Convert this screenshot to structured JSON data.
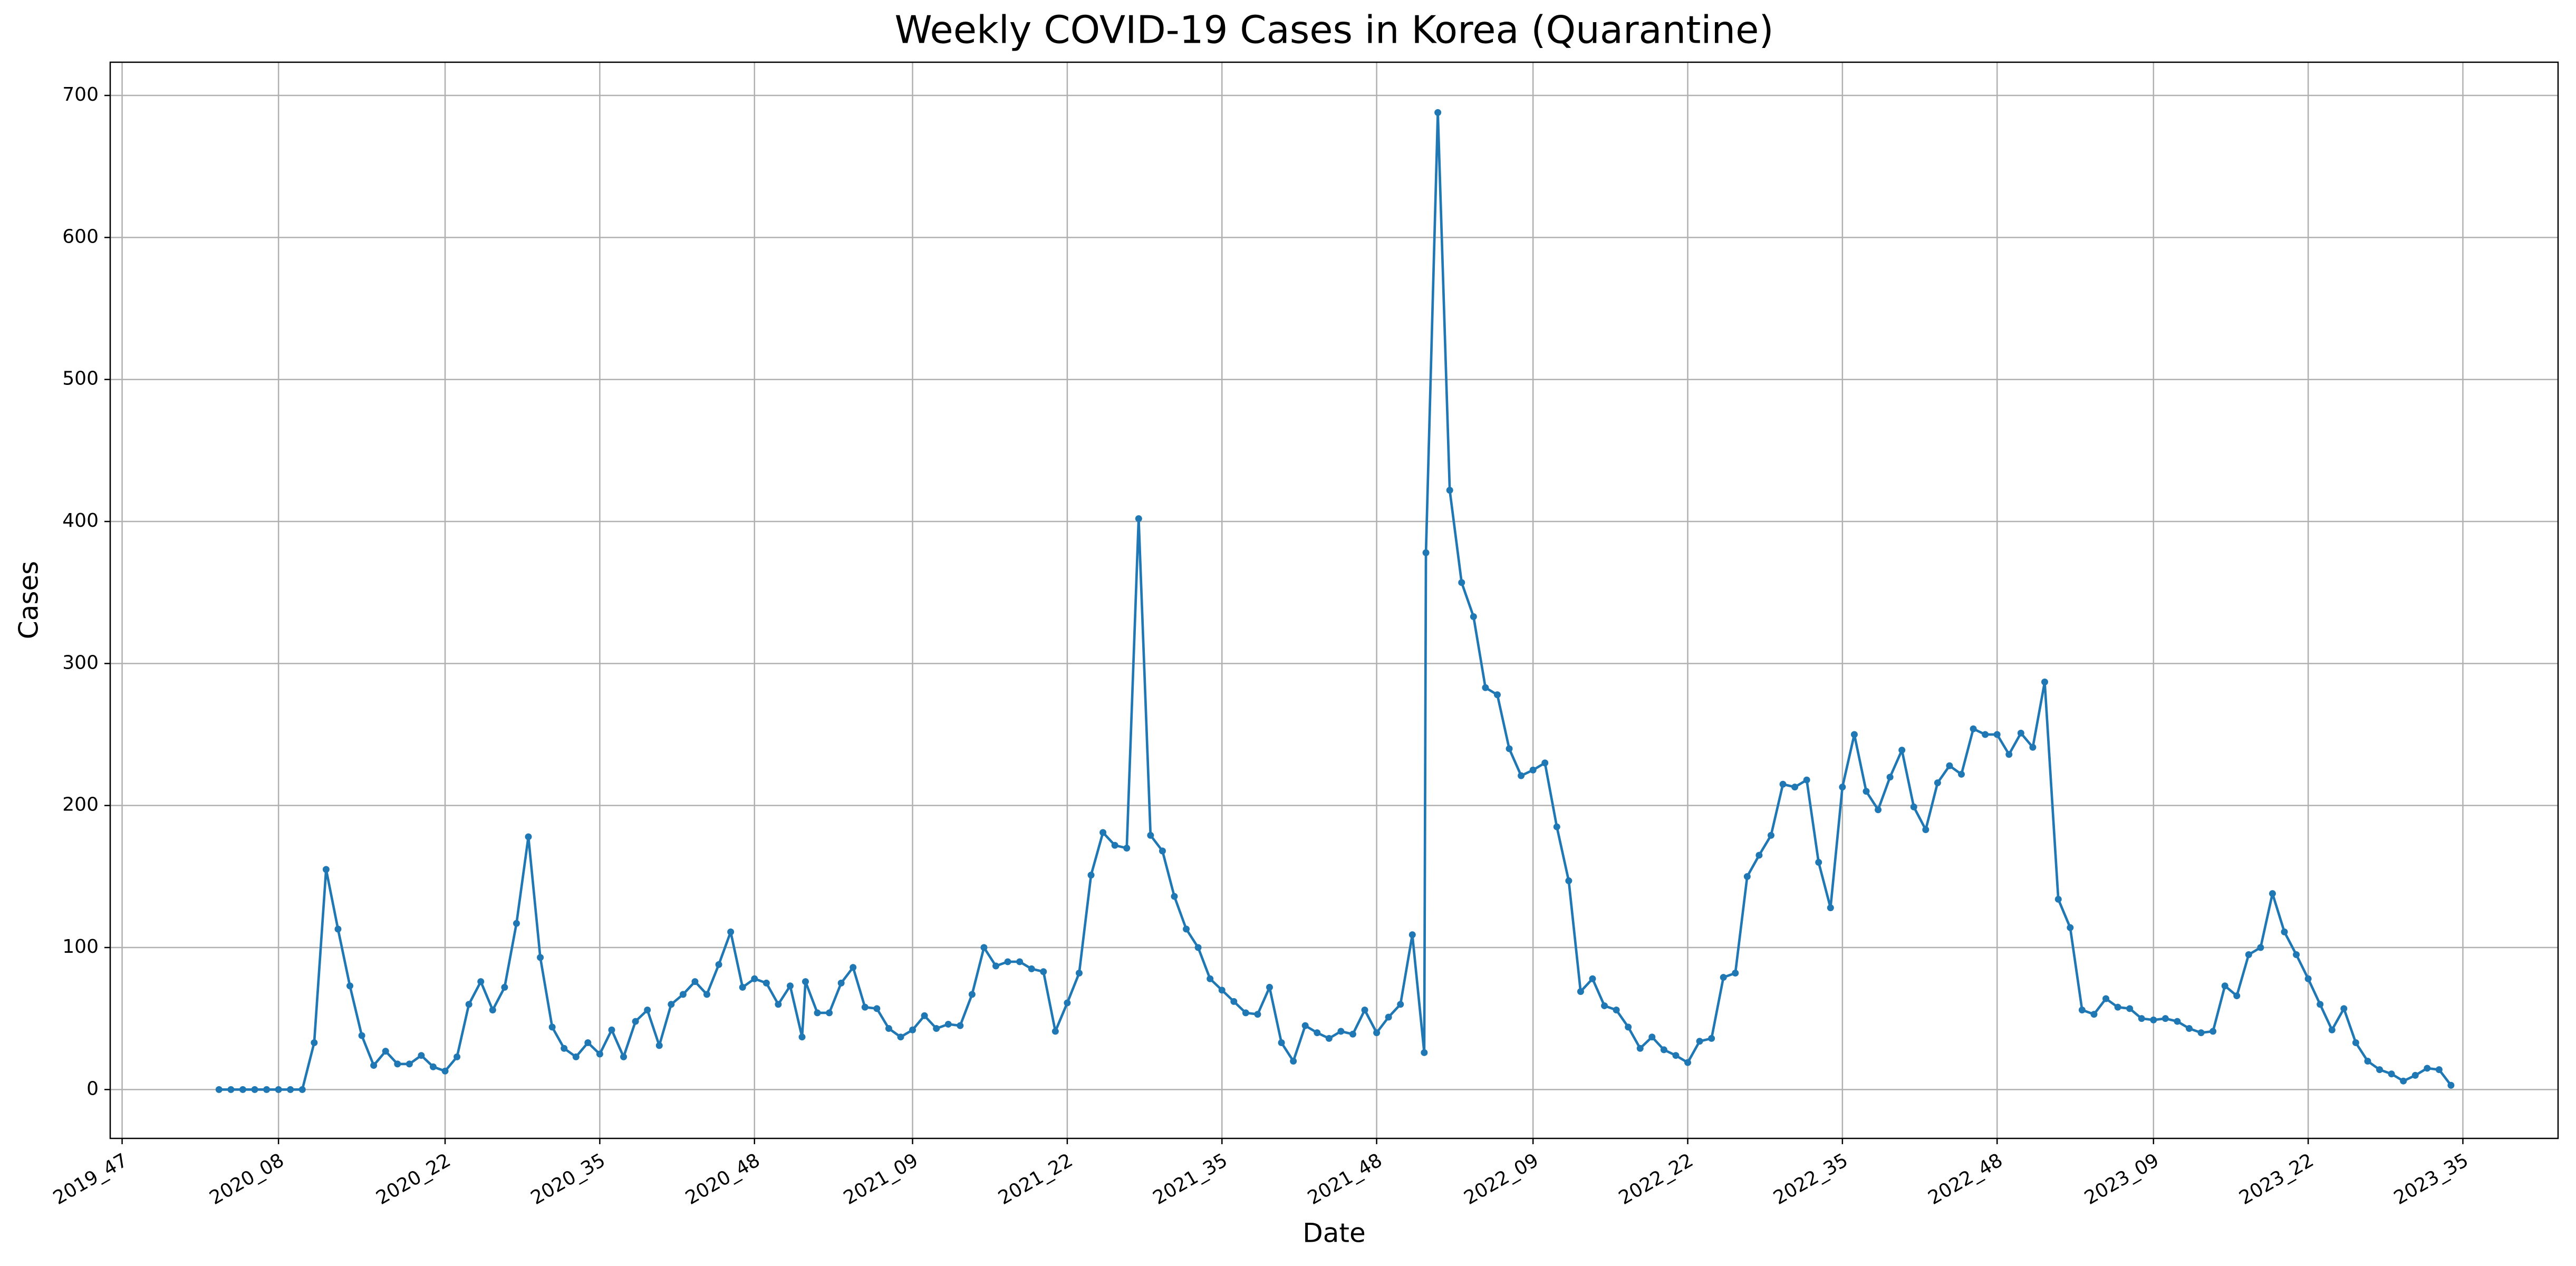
{
  "chart_data": {
    "type": "line",
    "title": "Weekly COVID-19 Cases in Korea (Quarantine)",
    "xlabel": "Date",
    "ylabel": "Cases",
    "x": [
      "2020_03",
      "2020_04",
      "2020_05",
      "2020_06",
      "2020_07",
      "2020_08",
      "2020_09",
      "2020_10",
      "2020_11",
      "2020_12",
      "2020_13",
      "2020_14",
      "2020_15",
      "2020_16",
      "2020_17",
      "2020_18",
      "2020_19",
      "2020_20",
      "2020_21",
      "2020_22",
      "2020_23",
      "2020_24",
      "2020_25",
      "2020_26",
      "2020_27",
      "2020_28",
      "2020_29",
      "2020_30",
      "2020_31",
      "2020_32",
      "2020_33",
      "2020_34",
      "2020_35",
      "2020_36",
      "2020_37",
      "2020_38",
      "2020_39",
      "2020_40",
      "2020_41",
      "2020_42",
      "2020_43",
      "2020_44",
      "2020_45",
      "2020_46",
      "2020_47",
      "2020_48",
      "2020_49",
      "2020_50",
      "2020_51",
      "2020_52",
      "2021_00",
      "2021_01",
      "2021_02",
      "2021_03",
      "2021_04",
      "2021_05",
      "2021_06",
      "2021_07",
      "2021_08",
      "2021_09",
      "2021_10",
      "2021_11",
      "2021_12",
      "2021_13",
      "2021_14",
      "2021_15",
      "2021_16",
      "2021_17",
      "2021_18",
      "2021_19",
      "2021_20",
      "2021_21",
      "2021_22",
      "2021_23",
      "2021_24",
      "2021_25",
      "2021_26",
      "2021_27",
      "2021_28",
      "2021_29",
      "2021_30",
      "2021_31",
      "2021_32",
      "2021_33",
      "2021_34",
      "2021_35",
      "2021_36",
      "2021_37",
      "2021_38",
      "2021_39",
      "2021_40",
      "2021_41",
      "2021_42",
      "2021_43",
      "2021_44",
      "2021_45",
      "2021_46",
      "2021_47",
      "2021_48",
      "2021_49",
      "2021_50",
      "2021_51",
      "2021_52",
      "2022_00",
      "2022_01",
      "2022_02",
      "2022_03",
      "2022_04",
      "2022_05",
      "2022_06",
      "2022_07",
      "2022_08",
      "2022_09",
      "2022_10",
      "2022_11",
      "2022_12",
      "2022_13",
      "2022_14",
      "2022_15",
      "2022_16",
      "2022_17",
      "2022_18",
      "2022_19",
      "2022_20",
      "2022_21",
      "2022_22",
      "2022_23",
      "2022_24",
      "2022_25",
      "2022_26",
      "2022_27",
      "2022_28",
      "2022_29",
      "2022_30",
      "2022_31",
      "2022_32",
      "2022_33",
      "2022_34",
      "2022_35",
      "2022_36",
      "2022_37",
      "2022_38",
      "2022_39",
      "2022_40",
      "2022_41",
      "2022_42",
      "2022_43",
      "2022_44",
      "2022_45",
      "2022_46",
      "2022_47",
      "2022_48",
      "2022_49",
      "2022_50",
      "2022_51",
      "2022_52",
      "2023_01",
      "2023_02",
      "2023_03",
      "2023_04",
      "2023_05",
      "2023_06",
      "2023_07",
      "2023_08",
      "2023_09",
      "2023_10",
      "2023_11",
      "2023_12",
      "2023_13",
      "2023_14",
      "2023_15",
      "2023_16",
      "2023_17",
      "2023_18",
      "2023_19",
      "2023_20",
      "2023_21",
      "2023_22",
      "2023_23",
      "2023_24",
      "2023_25",
      "2023_26",
      "2023_27",
      "2023_28",
      "2023_29",
      "2023_30",
      "2023_31",
      "2023_32",
      "2023_33",
      "2023_34"
    ],
    "series": [
      {
        "name": "Cases",
        "color": "#1f77b4",
        "values": [
          0,
          0,
          0,
          0,
          0,
          0,
          0,
          0,
          33,
          155,
          113,
          73,
          38,
          17,
          27,
          18,
          18,
          24,
          16,
          13,
          23,
          60,
          76,
          56,
          72,
          117,
          178,
          93,
          44,
          29,
          23,
          33,
          25,
          42,
          23,
          48,
          56,
          31,
          60,
          67,
          76,
          67,
          88,
          111,
          72,
          78,
          75,
          60,
          73,
          37,
          76,
          54,
          54,
          75,
          86,
          58,
          57,
          43,
          37,
          42,
          52,
          43,
          46,
          45,
          67,
          100,
          87,
          90,
          90,
          85,
          83,
          41,
          61,
          82,
          151,
          181,
          172,
          170,
          402,
          179,
          168,
          136,
          113,
          100,
          78,
          70,
          62,
          54,
          53,
          72,
          33,
          20,
          45,
          40,
          36,
          41,
          39,
          56,
          40,
          51,
          60,
          109,
          26,
          378,
          688,
          422,
          357,
          333,
          283,
          278,
          240,
          221,
          225,
          230,
          185,
          147,
          69,
          78,
          59,
          56,
          44,
          29,
          37,
          28,
          24,
          19,
          34,
          36,
          79,
          82,
          150,
          165,
          179,
          215,
          213,
          218,
          160,
          128,
          213,
          250,
          210,
          197,
          220,
          239,
          199,
          183,
          216,
          228,
          222,
          254,
          250,
          250,
          236,
          251,
          241,
          287,
          134,
          114,
          56,
          53,
          64,
          58,
          57,
          50,
          49,
          50,
          48,
          43,
          40,
          41,
          73,
          66,
          95,
          100,
          138,
          111,
          95,
          78,
          60,
          42,
          57,
          33,
          20,
          14,
          11,
          6,
          10,
          15,
          14,
          3
        ]
      }
    ],
    "xlim": [
      "2019_46",
      "2023_43"
    ],
    "xticks": [
      "2019_47",
      "2020_08",
      "2020_22",
      "2020_35",
      "2020_48",
      "2021_09",
      "2021_22",
      "2021_35",
      "2021_48",
      "2022_09",
      "2022_22",
      "2022_35",
      "2022_48",
      "2023_09",
      "2023_22",
      "2023_35"
    ],
    "ylim": [
      -34.4,
      723.4
    ],
    "yticks": [
      0,
      100,
      200,
      300,
      400,
      500,
      600,
      700
    ],
    "grid": true,
    "markers": true
  }
}
